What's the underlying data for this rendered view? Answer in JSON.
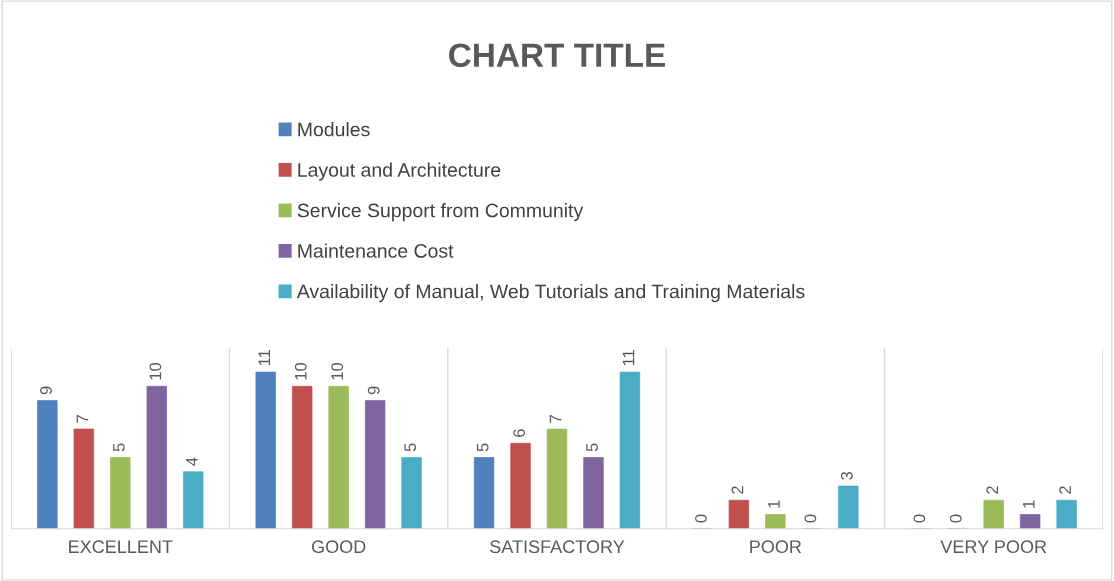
{
  "chart_data": {
    "type": "bar",
    "title": "CHART TITLE",
    "categories": [
      "EXCELLENT",
      "GOOD",
      "SATISFACTORY",
      "POOR",
      "VERY POOR"
    ],
    "series": [
      {
        "name": "Modules",
        "color": "#4f81bd",
        "values": [
          9,
          11,
          5,
          0,
          0
        ]
      },
      {
        "name": "Layout and Architecture",
        "color": "#c0504d",
        "values": [
          7,
          10,
          6,
          2,
          0
        ]
      },
      {
        "name": "Service Support from Community",
        "color": "#9bbb59",
        "values": [
          5,
          10,
          7,
          1,
          2
        ]
      },
      {
        "name": "Maintenance Cost",
        "color": "#8064a2",
        "values": [
          10,
          9,
          5,
          0,
          1
        ]
      },
      {
        "name": "Availability of Manual, Web Tutorials and Training Materials",
        "color": "#4bacc6",
        "values": [
          4,
          5,
          11,
          3,
          2
        ]
      }
    ],
    "data_labels": true,
    "grid": "x",
    "legend": "top"
  }
}
